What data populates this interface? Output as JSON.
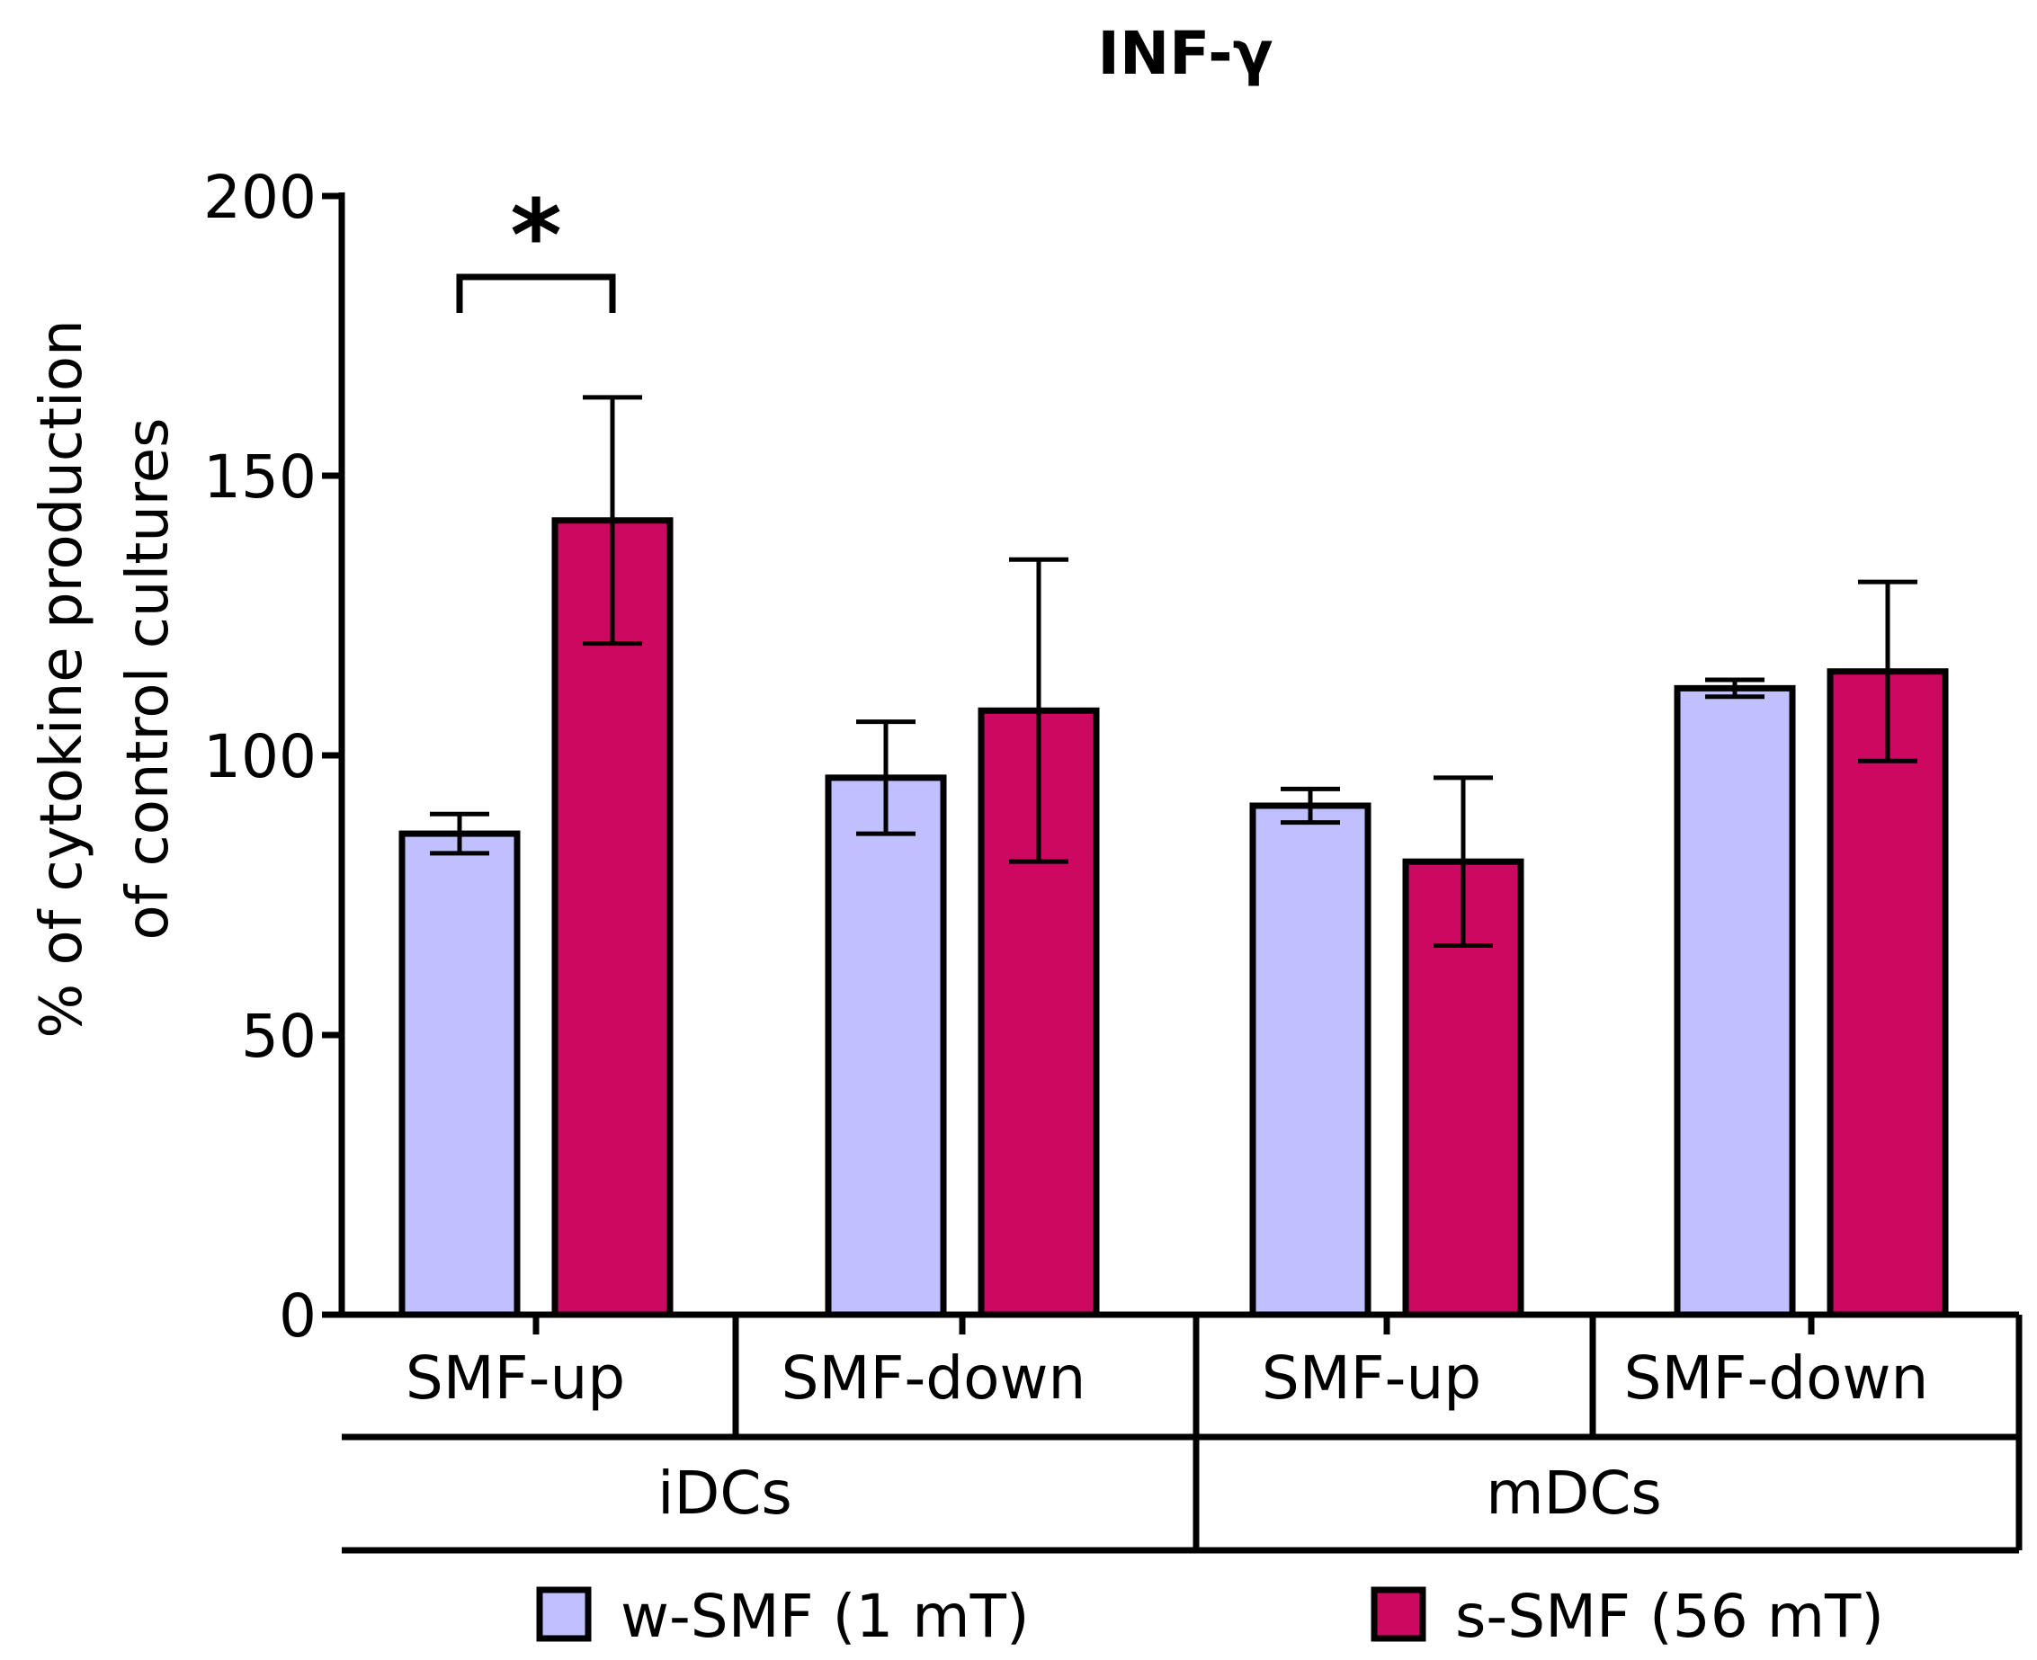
{
  "chart_data": {
    "type": "bar",
    "title": "INF-γ",
    "ylabel_lines": [
      "% of cytokine production",
      "of control cultures"
    ],
    "xlabel": "",
    "ylim": [
      0,
      200
    ],
    "yticks": [
      0,
      50,
      100,
      150,
      200
    ],
    "categories": [
      "SMF-up",
      "SMF-down",
      "SMF-up",
      "SMF-down"
    ],
    "groups": [
      {
        "label": "iDCs",
        "categories": [
          0,
          1
        ]
      },
      {
        "label": "mDCs",
        "categories": [
          2,
          3
        ]
      }
    ],
    "series": [
      {
        "name": "w-SMF (1 mT)",
        "color": "#c0c0ff",
        "values": [
          86,
          96,
          91,
          112
        ],
        "error": [
          3.5,
          10,
          3,
          1.5
        ]
      },
      {
        "name": "s-SMF (56 mT)",
        "color": "#cc0860",
        "values": [
          142,
          108,
          81,
          115
        ],
        "error": [
          22,
          27,
          15,
          16
        ]
      }
    ],
    "annotations": [
      {
        "text": "*",
        "category": 0,
        "between_series": [
          0,
          1
        ]
      }
    ],
    "legend_position": "bottom",
    "grid": false
  }
}
